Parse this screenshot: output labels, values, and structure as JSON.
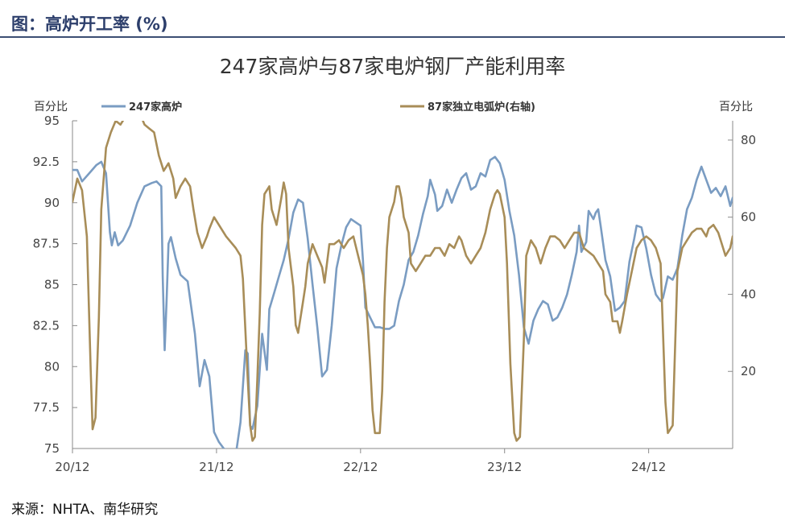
{
  "header": {
    "title": "图：高炉开工率 (%)"
  },
  "source": "来源：NHTA、南华研究",
  "chart_data": {
    "type": "line",
    "title": "247家高炉与87家电炉钢厂产能利用率",
    "left_axis": {
      "unit_label": "百分比",
      "min": 75,
      "max": 95,
      "ticks": [
        "95",
        "92.5",
        "90",
        "87.5",
        "85",
        "82.5",
        "80",
        "77.5",
        "75"
      ]
    },
    "right_axis": {
      "unit_label": "百分比",
      "min": 0,
      "max": 85,
      "ticks": [
        "80",
        "60",
        "40",
        "20"
      ]
    },
    "x_ticks": [
      "20/12",
      "21/12",
      "22/12",
      "23/12",
      "24/12"
    ],
    "legend_position": "top",
    "series": [
      {
        "name": "247家高炉",
        "axis": "left",
        "color": "#7a9cc2",
        "points": [
          [
            0.0,
            92.0
          ],
          [
            0.1,
            92.0
          ],
          [
            0.2,
            91.3
          ],
          [
            0.35,
            91.8
          ],
          [
            0.5,
            92.3
          ],
          [
            0.6,
            92.5
          ],
          [
            0.7,
            91.8
          ],
          [
            0.78,
            88.2
          ],
          [
            0.82,
            87.4
          ],
          [
            0.88,
            88.2
          ],
          [
            0.95,
            87.4
          ],
          [
            1.05,
            87.7
          ],
          [
            1.2,
            88.6
          ],
          [
            1.35,
            90.0
          ],
          [
            1.5,
            91.0
          ],
          [
            1.65,
            91.2
          ],
          [
            1.75,
            91.3
          ],
          [
            1.85,
            91.0
          ],
          [
            1.88,
            85.5
          ],
          [
            1.92,
            81.0
          ],
          [
            1.96,
            84.0
          ],
          [
            2.0,
            87.5
          ],
          [
            2.05,
            87.9
          ],
          [
            2.15,
            86.6
          ],
          [
            2.25,
            85.6
          ],
          [
            2.4,
            85.2
          ],
          [
            2.55,
            82.0
          ],
          [
            2.65,
            78.8
          ],
          [
            2.75,
            80.4
          ],
          [
            2.85,
            79.4
          ],
          [
            2.95,
            76.0
          ],
          [
            3.05,
            75.4
          ],
          [
            3.15,
            75.0
          ],
          [
            3.3,
            74.8
          ],
          [
            3.4,
            74.6
          ],
          [
            3.5,
            76.6
          ],
          [
            3.6,
            81.0
          ],
          [
            3.65,
            80.8
          ],
          [
            3.7,
            76.4
          ],
          [
            3.75,
            76.2
          ],
          [
            3.85,
            77.6
          ],
          [
            3.95,
            82.0
          ],
          [
            4.05,
            79.8
          ],
          [
            4.1,
            83.5
          ],
          [
            4.2,
            84.5
          ],
          [
            4.3,
            85.5
          ],
          [
            4.4,
            86.5
          ],
          [
            4.5,
            87.8
          ],
          [
            4.6,
            89.4
          ],
          [
            4.7,
            90.2
          ],
          [
            4.8,
            90.0
          ],
          [
            4.9,
            87.8
          ],
          [
            5.0,
            85.0
          ],
          [
            5.1,
            82.4
          ],
          [
            5.2,
            79.4
          ],
          [
            5.3,
            79.8
          ],
          [
            5.4,
            82.5
          ],
          [
            5.5,
            86.0
          ],
          [
            5.6,
            87.4
          ],
          [
            5.7,
            88.5
          ],
          [
            5.8,
            89.0
          ],
          [
            5.9,
            88.8
          ],
          [
            6.0,
            88.6
          ],
          [
            6.05,
            86.5
          ],
          [
            6.1,
            83.6
          ],
          [
            6.2,
            83.0
          ],
          [
            6.3,
            82.4
          ],
          [
            6.4,
            82.4
          ],
          [
            6.5,
            82.3
          ],
          [
            6.6,
            82.3
          ],
          [
            6.7,
            82.5
          ],
          [
            6.8,
            84.0
          ],
          [
            6.9,
            85.0
          ],
          [
            7.0,
            86.5
          ],
          [
            7.1,
            87.0
          ],
          [
            7.2,
            88.0
          ],
          [
            7.3,
            89.3
          ],
          [
            7.4,
            90.4
          ],
          [
            7.45,
            91.4
          ],
          [
            7.55,
            90.5
          ],
          [
            7.6,
            89.5
          ],
          [
            7.7,
            89.8
          ],
          [
            7.8,
            90.8
          ],
          [
            7.9,
            90.0
          ],
          [
            8.0,
            90.8
          ],
          [
            8.1,
            91.5
          ],
          [
            8.2,
            91.8
          ],
          [
            8.3,
            90.8
          ],
          [
            8.4,
            91.0
          ],
          [
            8.5,
            91.8
          ],
          [
            8.6,
            91.6
          ],
          [
            8.7,
            92.6
          ],
          [
            8.8,
            92.8
          ],
          [
            8.9,
            92.4
          ],
          [
            9.0,
            91.4
          ],
          [
            9.1,
            89.5
          ],
          [
            9.2,
            88.0
          ],
          [
            9.3,
            85.6
          ],
          [
            9.4,
            82.4
          ],
          [
            9.5,
            81.4
          ],
          [
            9.6,
            82.8
          ],
          [
            9.7,
            83.5
          ],
          [
            9.8,
            84.0
          ],
          [
            9.9,
            83.8
          ],
          [
            10.0,
            82.8
          ],
          [
            10.1,
            83.0
          ],
          [
            10.2,
            83.6
          ],
          [
            10.3,
            84.4
          ],
          [
            10.4,
            85.6
          ],
          [
            10.5,
            87.0
          ],
          [
            10.55,
            88.6
          ],
          [
            10.6,
            87.0
          ],
          [
            10.7,
            87.6
          ],
          [
            10.75,
            89.5
          ],
          [
            10.85,
            89.0
          ],
          [
            10.9,
            89.4
          ],
          [
            10.95,
            89.6
          ],
          [
            11.0,
            88.6
          ],
          [
            11.1,
            86.5
          ],
          [
            11.2,
            85.5
          ],
          [
            11.3,
            83.4
          ],
          [
            11.4,
            83.6
          ],
          [
            11.5,
            84.0
          ],
          [
            11.6,
            86.4
          ],
          [
            11.7,
            87.8
          ],
          [
            11.75,
            88.6
          ],
          [
            11.85,
            88.5
          ],
          [
            11.95,
            87.2
          ],
          [
            12.05,
            85.6
          ],
          [
            12.15,
            84.4
          ],
          [
            12.25,
            84.0
          ],
          [
            12.3,
            84.2
          ],
          [
            12.4,
            85.5
          ],
          [
            12.5,
            85.3
          ],
          [
            12.6,
            86.0
          ],
          [
            12.7,
            88.0
          ],
          [
            12.8,
            89.6
          ],
          [
            12.9,
            90.3
          ],
          [
            13.0,
            91.4
          ],
          [
            13.1,
            92.2
          ],
          [
            13.2,
            91.4
          ],
          [
            13.3,
            90.6
          ],
          [
            13.4,
            90.9
          ],
          [
            13.5,
            90.4
          ],
          [
            13.6,
            91.0
          ],
          [
            13.7,
            89.8
          ],
          [
            13.75,
            90.3
          ]
        ]
      },
      {
        "name": "87家独立电弧炉(右轴)",
        "axis": "right",
        "color": "#a88d58",
        "points": [
          [
            0.0,
            64
          ],
          [
            0.1,
            70
          ],
          [
            0.2,
            67
          ],
          [
            0.3,
            55
          ],
          [
            0.38,
            20
          ],
          [
            0.42,
            5
          ],
          [
            0.48,
            8
          ],
          [
            0.55,
            34
          ],
          [
            0.6,
            62
          ],
          [
            0.7,
            78
          ],
          [
            0.8,
            82
          ],
          [
            0.9,
            85
          ],
          [
            1.0,
            84
          ],
          [
            1.1,
            86
          ],
          [
            1.2,
            87
          ],
          [
            1.3,
            88
          ],
          [
            1.4,
            87
          ],
          [
            1.5,
            84
          ],
          [
            1.6,
            83
          ],
          [
            1.7,
            82
          ],
          [
            1.8,
            76
          ],
          [
            1.9,
            72
          ],
          [
            2.0,
            74
          ],
          [
            2.1,
            70
          ],
          [
            2.15,
            65
          ],
          [
            2.25,
            68
          ],
          [
            2.35,
            70
          ],
          [
            2.45,
            68
          ],
          [
            2.52,
            62
          ],
          [
            2.6,
            56
          ],
          [
            2.7,
            52
          ],
          [
            2.8,
            55
          ],
          [
            2.85,
            57
          ],
          [
            2.95,
            60
          ],
          [
            3.05,
            58
          ],
          [
            3.2,
            55
          ],
          [
            3.4,
            52
          ],
          [
            3.5,
            50
          ],
          [
            3.55,
            44
          ],
          [
            3.65,
            18
          ],
          [
            3.7,
            6
          ],
          [
            3.75,
            2
          ],
          [
            3.8,
            3
          ],
          [
            3.85,
            18
          ],
          [
            3.9,
            35
          ],
          [
            3.95,
            58
          ],
          [
            4.0,
            66
          ],
          [
            4.1,
            68
          ],
          [
            4.15,
            62
          ],
          [
            4.25,
            58
          ],
          [
            4.35,
            65
          ],
          [
            4.4,
            69
          ],
          [
            4.45,
            66
          ],
          [
            4.5,
            52
          ],
          [
            4.6,
            42
          ],
          [
            4.65,
            32
          ],
          [
            4.7,
            30
          ],
          [
            4.8,
            38
          ],
          [
            4.85,
            42
          ],
          [
            4.9,
            48
          ],
          [
            5.0,
            53
          ],
          [
            5.1,
            50
          ],
          [
            5.2,
            47
          ],
          [
            5.25,
            43
          ],
          [
            5.35,
            53
          ],
          [
            5.45,
            53
          ],
          [
            5.55,
            54
          ],
          [
            5.65,
            52
          ],
          [
            5.75,
            54
          ],
          [
            5.85,
            55
          ],
          [
            5.95,
            50
          ],
          [
            6.05,
            45
          ],
          [
            6.1,
            40
          ],
          [
            6.15,
            32
          ],
          [
            6.2,
            22
          ],
          [
            6.25,
            10
          ],
          [
            6.3,
            4
          ],
          [
            6.4,
            4
          ],
          [
            6.45,
            15
          ],
          [
            6.5,
            38
          ],
          [
            6.55,
            52
          ],
          [
            6.6,
            60
          ],
          [
            6.7,
            64
          ],
          [
            6.75,
            68
          ],
          [
            6.8,
            68
          ],
          [
            6.85,
            65
          ],
          [
            6.9,
            60
          ],
          [
            7.0,
            56
          ],
          [
            7.05,
            48
          ],
          [
            7.15,
            46
          ],
          [
            7.25,
            48
          ],
          [
            7.35,
            50
          ],
          [
            7.45,
            50
          ],
          [
            7.55,
            52
          ],
          [
            7.65,
            52
          ],
          [
            7.75,
            50
          ],
          [
            7.85,
            53
          ],
          [
            7.95,
            52
          ],
          [
            8.05,
            55
          ],
          [
            8.1,
            54
          ],
          [
            8.2,
            50
          ],
          [
            8.3,
            48
          ],
          [
            8.4,
            50
          ],
          [
            8.5,
            52
          ],
          [
            8.6,
            56
          ],
          [
            8.7,
            62
          ],
          [
            8.8,
            66
          ],
          [
            8.85,
            67
          ],
          [
            8.9,
            66
          ],
          [
            9.0,
            60
          ],
          [
            9.05,
            48
          ],
          [
            9.12,
            22
          ],
          [
            9.2,
            4
          ],
          [
            9.25,
            2
          ],
          [
            9.32,
            3
          ],
          [
            9.4,
            28
          ],
          [
            9.45,
            50
          ],
          [
            9.55,
            54
          ],
          [
            9.65,
            52
          ],
          [
            9.75,
            48
          ],
          [
            9.85,
            52
          ],
          [
            9.95,
            55
          ],
          [
            10.05,
            55
          ],
          [
            10.15,
            54
          ],
          [
            10.25,
            52
          ],
          [
            10.35,
            54
          ],
          [
            10.45,
            56
          ],
          [
            10.55,
            56
          ],
          [
            10.65,
            52
          ],
          [
            10.75,
            51
          ],
          [
            10.85,
            50
          ],
          [
            10.95,
            48
          ],
          [
            11.05,
            46
          ],
          [
            11.1,
            40
          ],
          [
            11.2,
            38
          ],
          [
            11.25,
            33
          ],
          [
            11.35,
            33
          ],
          [
            11.4,
            30
          ],
          [
            11.45,
            33
          ],
          [
            11.55,
            40
          ],
          [
            11.65,
            46
          ],
          [
            11.75,
            52
          ],
          [
            11.85,
            54
          ],
          [
            11.95,
            55
          ],
          [
            12.05,
            54
          ],
          [
            12.15,
            52
          ],
          [
            12.25,
            48
          ],
          [
            12.3,
            30
          ],
          [
            12.35,
            12
          ],
          [
            12.4,
            4
          ],
          [
            12.5,
            6
          ],
          [
            12.6,
            46
          ],
          [
            12.7,
            52
          ],
          [
            12.8,
            54
          ],
          [
            12.9,
            56
          ],
          [
            13.0,
            57
          ],
          [
            13.1,
            57
          ],
          [
            13.2,
            55
          ],
          [
            13.25,
            57
          ],
          [
            13.35,
            58
          ],
          [
            13.45,
            56
          ],
          [
            13.5,
            54
          ],
          [
            13.6,
            50
          ],
          [
            13.7,
            52
          ],
          [
            13.75,
            55
          ]
        ]
      }
    ]
  }
}
